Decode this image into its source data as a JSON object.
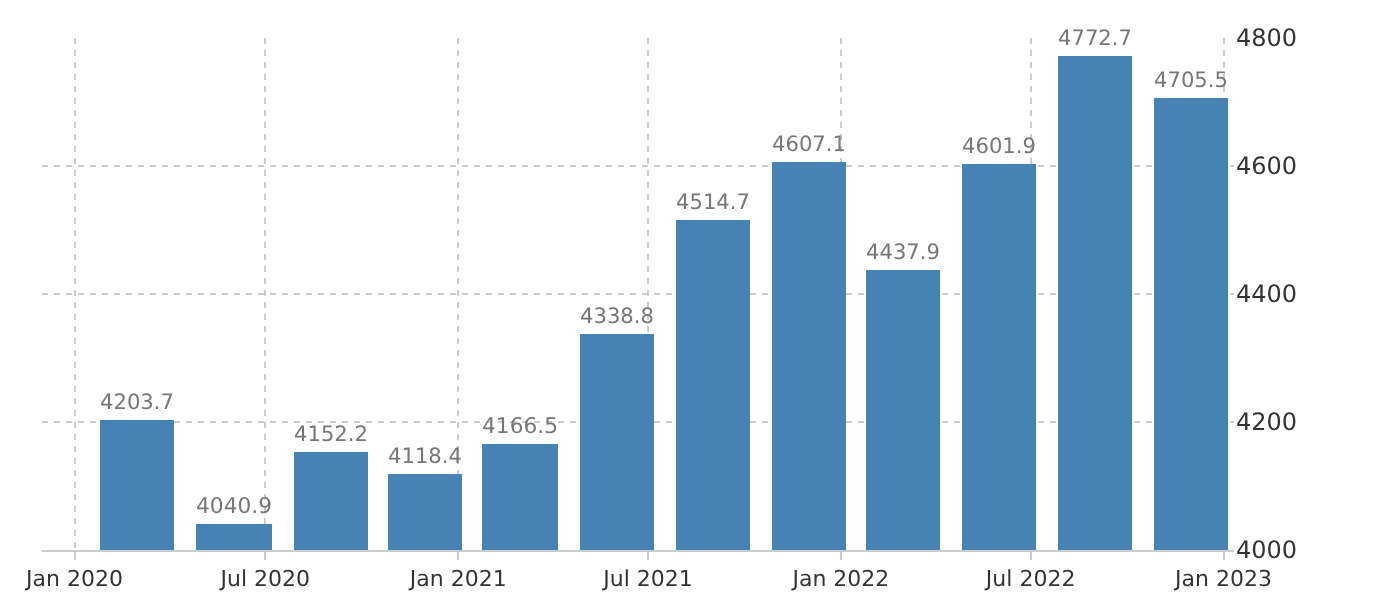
{
  "chart_data": {
    "type": "bar",
    "x": [
      "2020-03",
      "2020-06",
      "2020-09",
      "2020-12",
      "2021-03",
      "2021-06",
      "2021-09",
      "2021-12",
      "2022-03",
      "2022-06",
      "2022-09",
      "2022-12"
    ],
    "values": [
      4203.7,
      4040.9,
      4152.2,
      4118.4,
      4166.5,
      4338.8,
      4514.7,
      4607.1,
      4437.9,
      4601.9,
      4772.7,
      4705.5
    ],
    "color": "#4682b4",
    "data_labels": true,
    "xlim": [
      "2019-12-01",
      "2023-01-11"
    ],
    "xticks": [
      {
        "value": "2020-01",
        "label": "Jan 2020"
      },
      {
        "value": "2020-07",
        "label": "Jul 2020"
      },
      {
        "value": "2021-01",
        "label": "Jan 2021"
      },
      {
        "value": "2021-07",
        "label": "Jul 2021"
      },
      {
        "value": "2022-01",
        "label": "Jan 2022"
      },
      {
        "value": "2022-07",
        "label": "Jul 2022"
      },
      {
        "value": "2023-01",
        "label": "Jan 2023"
      }
    ],
    "ylim": [
      4000,
      4800
    ],
    "yticks": [
      4000,
      4200,
      4400,
      4600,
      4800
    ],
    "grid": true
  }
}
